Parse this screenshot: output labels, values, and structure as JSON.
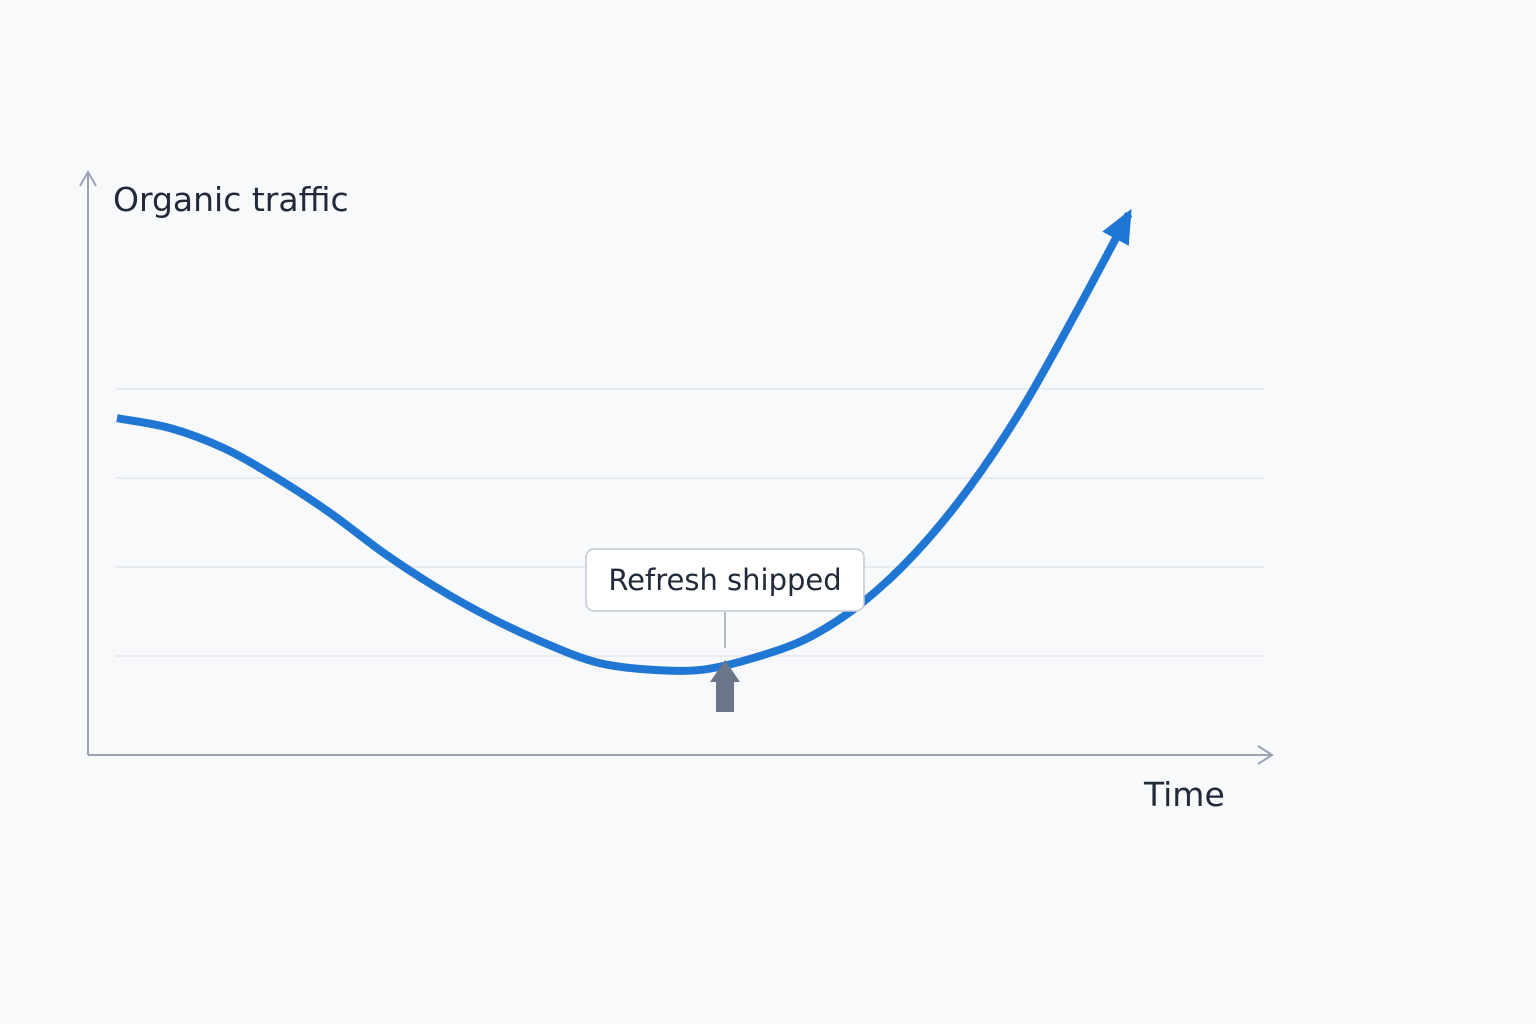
{
  "chart_data": {
    "type": "line",
    "title": "",
    "xlabel": "Time",
    "ylabel": "Organic traffic",
    "xlim": [
      0,
      10
    ],
    "ylim": [
      0,
      10
    ],
    "grid": true,
    "series": [
      {
        "values_x": [
          0,
          0.5,
          1.0,
          1.5,
          2.0,
          2.5,
          3.0,
          3.5,
          4.0,
          4.5,
          5.0,
          5.5,
          6.0,
          6.5,
          7.0,
          7.5,
          8.0,
          8.5,
          9.0,
          9.5
        ],
        "values_y": [
          5.9,
          5.7,
          5.3,
          4.7,
          4.0,
          3.2,
          2.5,
          1.9,
          1.4,
          1.0,
          0.85,
          0.85,
          1.1,
          1.5,
          2.2,
          3.2,
          4.5,
          6.1,
          8.0,
          10.0
        ],
        "color": "#2076d3",
        "end_arrow": true
      }
    ],
    "annotations": [
      {
        "label": "Refresh shipped",
        "x": 5.4,
        "marker": "up-arrow",
        "marker_color": "#6b7789"
      }
    ],
    "colors": {
      "line": "#2076d3",
      "axis": "#9aa3b3",
      "grid": "#e3e7ed",
      "text": "#222a3a",
      "marker": "#6b7789",
      "background": "#f7f9fb"
    }
  }
}
